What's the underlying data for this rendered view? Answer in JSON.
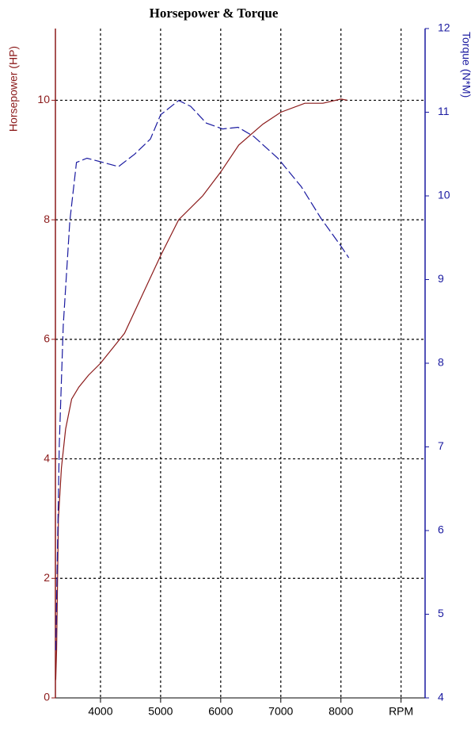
{
  "chart_data": {
    "type": "line",
    "title": "Horsepower & Torque",
    "ylabel": "Horsepower (HP)",
    "y2label": "Torque (N*M)",
    "xlim": [
      3250,
      9400
    ],
    "xticks": [
      4000,
      5000,
      6000,
      7000,
      8000,
      {
        "value": 9000,
        "label": "RPM"
      }
    ],
    "ylim": [
      0,
      11.2
    ],
    "yticks": [
      0,
      2,
      4,
      6,
      8,
      10
    ],
    "y2lim": [
      4,
      12
    ],
    "y2ticks": [
      4,
      5,
      6,
      7,
      8,
      9,
      10,
      11,
      12
    ],
    "grid": true,
    "series": [
      {
        "color": "#8b1a1a",
        "dash": false,
        "x": [
          3255,
          3270,
          3300,
          3350,
          3420,
          3520,
          3640,
          3800,
          4000,
          4200,
          4400,
          4700,
          5000,
          5300,
          5700,
          6000,
          6300,
          6700,
          7000,
          7400,
          7700,
          8000,
          8100
        ],
        "values": [
          0.3,
          0.8,
          3.0,
          3.85,
          4.5,
          5.0,
          5.2,
          5.4,
          5.6,
          5.85,
          6.1,
          6.75,
          7.4,
          8.0,
          8.4,
          8.8,
          9.25,
          9.6,
          9.8,
          9.95,
          9.95,
          10.02,
          10.0
        ]
      },
      {
        "color": "#1a1aa0",
        "dash": true,
        "axis": "y2",
        "x": [
          3255,
          3315,
          3380,
          3490,
          3600,
          3775,
          4040,
          4300,
          4570,
          4830,
          5000,
          5300,
          5500,
          5760,
          6030,
          6290,
          6550,
          6950,
          7340,
          7670,
          8000,
          8130
        ],
        "values": [
          4.57,
          7.03,
          8.45,
          9.7,
          10.4,
          10.45,
          10.4,
          10.35,
          10.5,
          10.68,
          10.97,
          11.14,
          11.07,
          10.87,
          10.8,
          10.82,
          10.71,
          10.45,
          10.11,
          9.73,
          9.4,
          9.26
        ]
      }
    ]
  }
}
